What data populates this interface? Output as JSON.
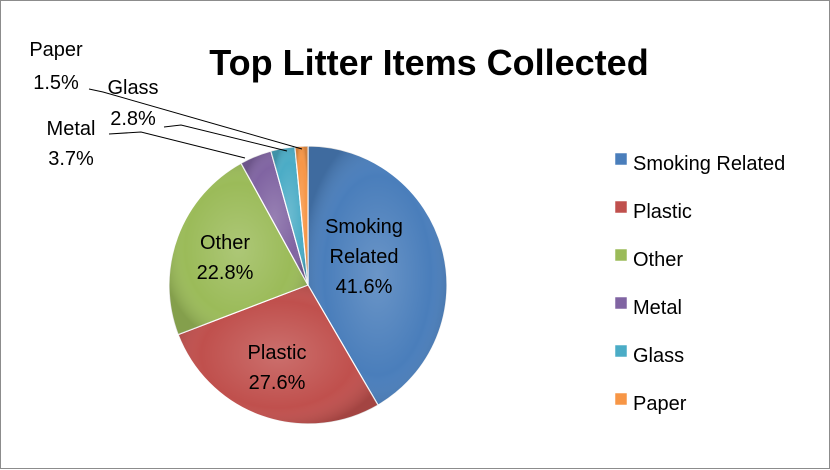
{
  "chart_data": {
    "type": "pie",
    "title": "Top Litter Items Collected",
    "categories": [
      "Smoking Related",
      "Plastic",
      "Other",
      "Metal",
      "Glass",
      "Paper"
    ],
    "values": [
      41.6,
      27.6,
      22.8,
      3.7,
      2.8,
      1.5
    ],
    "value_labels": [
      "41.6%",
      "27.6%",
      "22.8%",
      "3.7%",
      "2.8%",
      "1.5%"
    ],
    "colors": [
      "#4a7ebb",
      "#c0504d",
      "#9bbb59",
      "#8064a2",
      "#4bacc6",
      "#f79646"
    ],
    "start_angle_deg": 0,
    "direction": "clockwise",
    "legend_position": "right",
    "label_placement": {
      "Smoking Related": "inside",
      "Plastic": "inside",
      "Other": "inside",
      "Metal": "outside-leader",
      "Glass": "outside-leader",
      "Paper": "outside-leader"
    }
  }
}
